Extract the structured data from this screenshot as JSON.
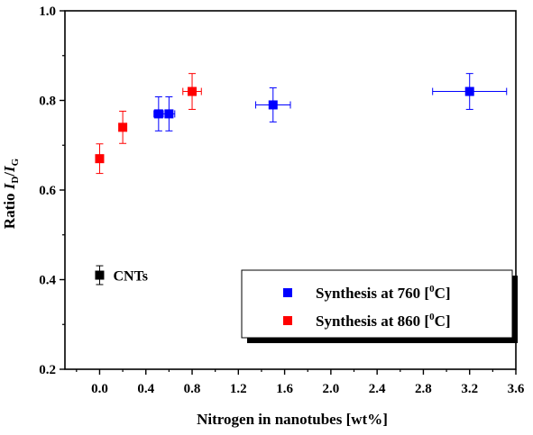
{
  "chart_data": {
    "type": "scatter",
    "xlabel": "Nitrogen in nanotubes [wt%]",
    "ylabel": {
      "prefix": "Ratio ",
      "i1": "I",
      "sub1": "D",
      "slash": "/",
      "i2": "I",
      "sub2": "G"
    },
    "xlim": [
      -0.3,
      3.6
    ],
    "ylim": [
      0.2,
      1.0
    ],
    "xticks": [
      "0.0",
      "0.4",
      "0.8",
      "1.2",
      "1.6",
      "2.0",
      "2.4",
      "2.8",
      "3.2",
      "3.6"
    ],
    "xtick_values": [
      0.0,
      0.4,
      0.8,
      1.2,
      1.6,
      2.0,
      2.4,
      2.8,
      3.2,
      3.6
    ],
    "yticks": [
      "0.2",
      "0.4",
      "0.6",
      "0.8",
      "1.0"
    ],
    "ytick_values": [
      0.2,
      0.4,
      0.6,
      0.8,
      1.0
    ],
    "grid": false,
    "legend_position": "bottom-right",
    "series": [
      {
        "name": "Synthesis at 760 [0C]",
        "legend": {
          "pre": "Synthesis at 760 [",
          "sup": "0",
          "post": "C]"
        },
        "color": "#0000ff",
        "points": [
          {
            "x": 0.51,
            "y": 0.77,
            "xerr": 0.04,
            "yerr": 0.038
          },
          {
            "x": 0.6,
            "y": 0.77,
            "xerr": 0.05,
            "yerr": 0.038
          },
          {
            "x": 1.5,
            "y": 0.79,
            "xerr": 0.15,
            "yerr": 0.038
          },
          {
            "x": 3.2,
            "y": 0.82,
            "xerr": 0.32,
            "yerr": 0.04
          }
        ]
      },
      {
        "name": "Synthesis at 860 [0C]",
        "legend": {
          "pre": "Synthesis at 860 [",
          "sup": "0",
          "post": "C]"
        },
        "color": "#ff0000",
        "points": [
          {
            "x": 0.0,
            "y": 0.67,
            "xerr": 0.0,
            "yerr": 0.033
          },
          {
            "x": 0.2,
            "y": 0.74,
            "xerr": 0.0,
            "yerr": 0.036
          },
          {
            "x": 0.8,
            "y": 0.82,
            "xerr": 0.08,
            "yerr": 0.04
          }
        ]
      },
      {
        "color": "#000000",
        "points": [
          {
            "x": 0.0,
            "y": 0.41,
            "xerr": 0.0,
            "yerr": 0.021
          }
        ]
      }
    ],
    "annotations": [
      {
        "text": "CNTs",
        "x": 0.0,
        "y": 0.41
      }
    ]
  }
}
